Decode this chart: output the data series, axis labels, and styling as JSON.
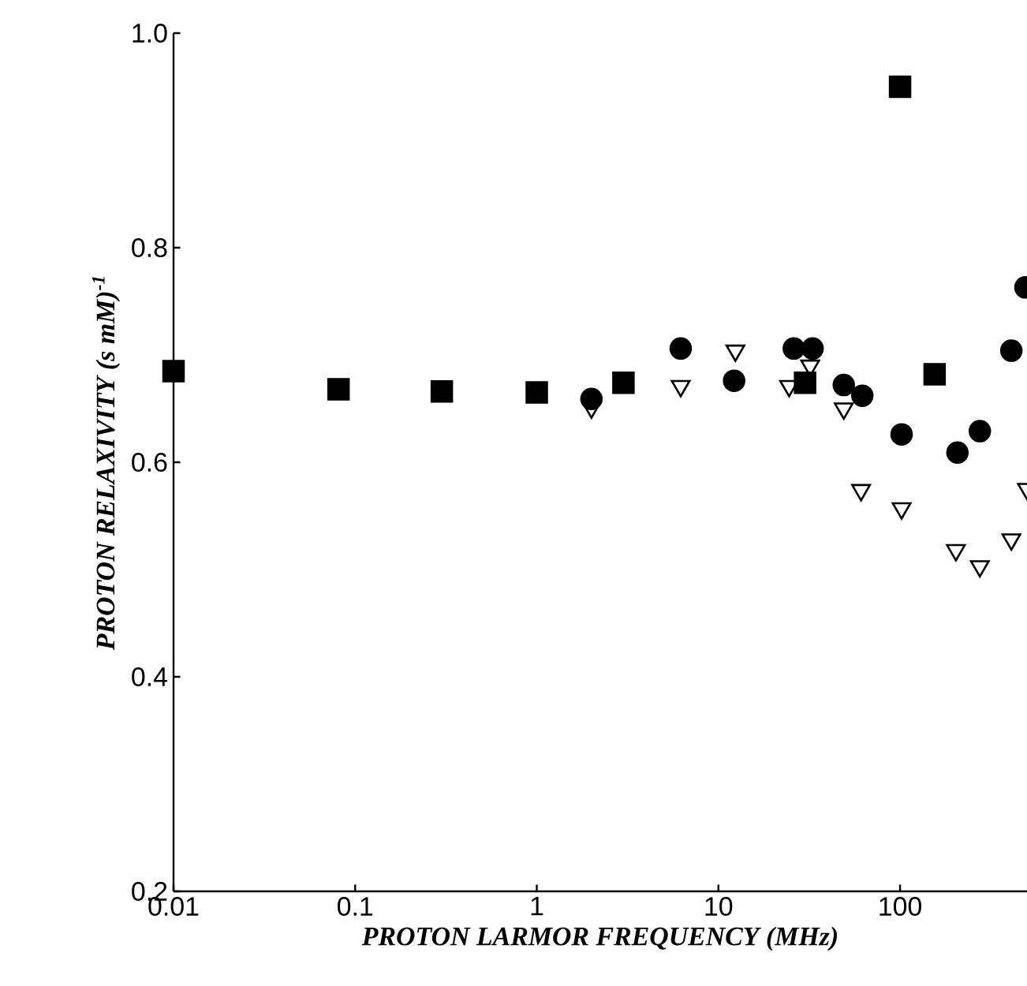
{
  "chart_data": {
    "type": "scatter",
    "xlabel": "PROTON LARMOR FREQUENCY (MHz)",
    "ylabel": "PROTON RELAXIVITY (s mM)$^{-1}$",
    "log": "x",
    "xlim": [
      0.01,
      500
    ],
    "ylim": [
      0.2,
      1.0
    ],
    "xticks": [
      0.01,
      0.1,
      1,
      10,
      100
    ],
    "yticks": [
      0.2,
      0.4,
      0.6,
      0.8,
      {
        "value": 1.0,
        "label": "1.0"
      }
    ],
    "series": [
      {
        "color": "#000000",
        "marker": "square",
        "x": [
          0.01,
          0.081,
          0.3,
          1.0,
          3.0,
          30,
          155,
          100
        ],
        "values": [
          0.685,
          0.668,
          0.666,
          0.665,
          0.674,
          0.674,
          0.682,
          0.95
        ]
      },
      {
        "color": "#000000",
        "marker": "circle",
        "x": [
          2,
          6.2,
          12.2,
          26,
          33,
          49,
          62,
          102,
          207,
          275,
          410,
          490
        ],
        "values": [
          0.659,
          0.706,
          0.676,
          0.706,
          0.706,
          0.672,
          0.662,
          0.626,
          0.609,
          0.629,
          0.704,
          0.763
        ]
      },
      {
        "color": "#000000",
        "marker": "triangle",
        "x": [
          2,
          6.2,
          12.4,
          24.5,
          32,
          49,
          61,
          102,
          203,
          275,
          410,
          500
        ],
        "values": [
          0.651,
          0.671,
          0.704,
          0.671,
          0.69,
          0.65,
          0.574,
          0.557,
          0.518,
          0.503,
          0.528,
          0.575
        ]
      }
    ]
  }
}
